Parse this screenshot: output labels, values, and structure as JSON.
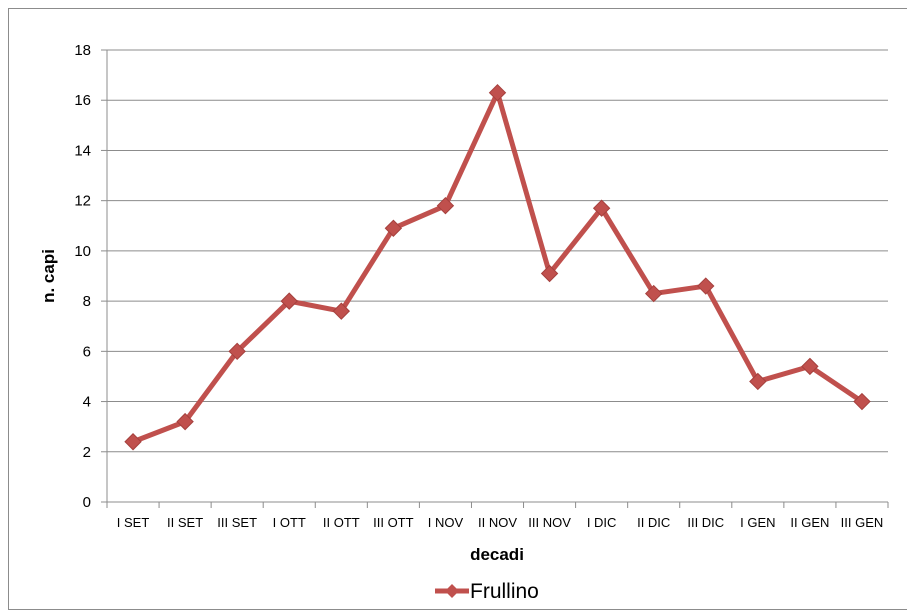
{
  "chart_data": {
    "type": "line",
    "title": "",
    "xlabel": "decadi",
    "ylabel": "n. capi",
    "ylim": [
      0,
      18
    ],
    "yticks": [
      0,
      2,
      4,
      6,
      8,
      10,
      12,
      14,
      16,
      18
    ],
    "grid": true,
    "legend_position": "bottom",
    "categories": [
      "I SET",
      "II SET",
      "III SET",
      "I OTT",
      "II OTT",
      "III OTT",
      "I NOV",
      "II NOV",
      "III NOV",
      "I DIC",
      "II DIC",
      "III DIC",
      "I GEN",
      "II GEN",
      "III GEN"
    ],
    "series": [
      {
        "name": "Frullino",
        "color": "#c0504d",
        "marker": "diamond",
        "values": [
          2.4,
          3.2,
          6.0,
          8.0,
          7.6,
          10.9,
          11.8,
          16.3,
          9.1,
          11.7,
          8.3,
          8.6,
          4.8,
          5.4,
          4.0
        ]
      }
    ]
  }
}
